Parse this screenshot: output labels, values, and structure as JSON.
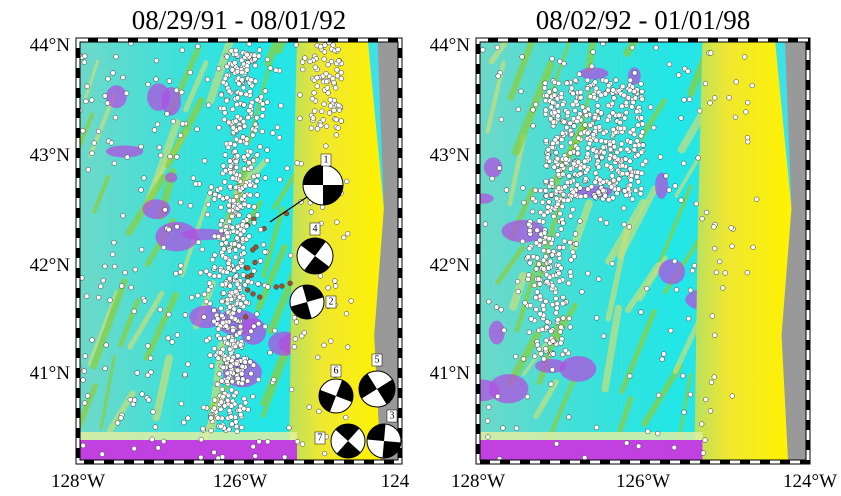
{
  "panels": [
    {
      "title": "08/29/91  -  08/01/92",
      "y_labels": [
        "44°N",
        "43°N",
        "42°N",
        "41°N"
      ],
      "x_labels": [
        "128°W",
        "126°W",
        "124"
      ],
      "focal_mechanisms": [
        "1",
        "4",
        "2",
        "6",
        "5",
        "3",
        "7"
      ]
    },
    {
      "title": "08/02/92  -  01/01/98",
      "y_labels": [
        "44°N",
        "43°N",
        "42°N",
        "41°N"
      ],
      "x_labels": [
        "128°W",
        "126°W",
        "124°W"
      ]
    }
  ]
}
